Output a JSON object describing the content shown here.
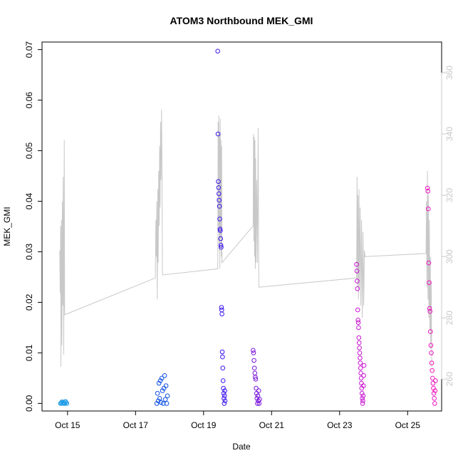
{
  "chart_data": {
    "type": "scatter",
    "title": "ATOM3 Northbound MEK_GMI",
    "xlabel": "Date",
    "ylabel": "MEK_GMI",
    "x_tick_labels": [
      "Oct 15",
      "Oct 17",
      "Oct 19",
      "Oct 21",
      "Oct 23",
      "Oct 25"
    ],
    "x_tick_dates": [
      "2016-10-15",
      "2016-10-17",
      "2016-10-19",
      "2016-10-21",
      "2016-10-23",
      "2016-10-25"
    ],
    "xlim": [
      "2016-10-14T06:00",
      "2016-10-26T00:00"
    ],
    "ylim": [
      -0.0015,
      0.0715
    ],
    "y_ticks": [
      0.0,
      0.01,
      0.02,
      0.03,
      0.04,
      0.05,
      0.06,
      0.07
    ],
    "y_tick_labels": [
      "0.00",
      "0.01",
      "0.02",
      "0.03",
      "0.04",
      "0.05",
      "0.06",
      "0.07"
    ],
    "right_axis": {
      "color": "#c8c8c8",
      "ylim": [
        249.6,
        370.0
      ],
      "ticks": [
        260,
        280,
        300,
        320,
        340,
        360
      ],
      "tick_labels": [
        "260",
        "280",
        "300",
        "320",
        "340",
        "360"
      ]
    },
    "grid": false,
    "legend": "none",
    "marker": "open-circle",
    "point_clusters": [
      {
        "date": "2016-10-14T19:00",
        "color": "#1e9be6",
        "points": [
          [
            0,
            0.0
          ],
          [
            0.5,
            0.0001
          ],
          [
            1,
            0.0003
          ],
          [
            1.5,
            0.0
          ],
          [
            2,
            0.0002
          ],
          [
            2.5,
            0.0001
          ],
          [
            3,
            0.0
          ],
          [
            3.5,
            0.0004
          ],
          [
            4,
            0.0002
          ],
          [
            4.5,
            0.0
          ]
        ]
      },
      {
        "date": "2016-10-17T15:00",
        "color": "#0f50e6",
        "points": [
          [
            0,
            0.0
          ],
          [
            0.5,
            0.002
          ],
          [
            1,
            0.0005
          ],
          [
            1.5,
            0.004
          ],
          [
            2,
            0.001
          ],
          [
            2.5,
            0.0045
          ],
          [
            3,
            0.0002
          ],
          [
            3.5,
            0.005
          ],
          [
            4,
            0.0025
          ],
          [
            4.5,
            0.0
          ],
          [
            5,
            0.003
          ],
          [
            5.5,
            0.0055
          ],
          [
            6,
            0.0008
          ],
          [
            6.5,
            0.0035
          ],
          [
            7,
            0.0
          ],
          [
            7.5,
            0.0015
          ]
        ]
      },
      {
        "date": "2016-10-19T10:00",
        "color": "#3c14f0",
        "points": [
          [
            0,
            0.0697
          ],
          [
            0.2,
            0.0533
          ],
          [
            0.4,
            0.0439
          ],
          [
            0.6,
            0.0427
          ],
          [
            0.8,
            0.0415
          ],
          [
            1,
            0.0402
          ],
          [
            1.2,
            0.039
          ],
          [
            1.4,
            0.0365
          ],
          [
            1.6,
            0.0345
          ],
          [
            1.8,
            0.0342
          ],
          [
            2,
            0.0326
          ],
          [
            2.2,
            0.0313
          ],
          [
            2.4,
            0.0309
          ],
          [
            2.6,
            0.019
          ],
          [
            2.8,
            0.0185
          ],
          [
            3,
            0.0177
          ],
          [
            3.2,
            0.0102
          ],
          [
            3.4,
            0.0092
          ],
          [
            3.6,
            0.007
          ],
          [
            3.8,
            0.0045
          ],
          [
            4,
            0.003
          ],
          [
            4.2,
            0.002
          ],
          [
            4.4,
            0.001
          ],
          [
            4.6,
            0.0
          ],
          [
            4.8,
            0.0015
          ],
          [
            5,
            0.0025
          ],
          [
            5.2,
            0.0005
          ]
        ]
      },
      {
        "date": "2016-10-20T11:00",
        "color": "#7814dc",
        "points": [
          [
            0,
            0.0105
          ],
          [
            0.3,
            0.01
          ],
          [
            0.6,
            0.0085
          ],
          [
            0.9,
            0.007
          ],
          [
            1.2,
            0.006
          ],
          [
            1.5,
            0.0052
          ],
          [
            1.8,
            0.0048
          ],
          [
            2.1,
            0.003
          ],
          [
            2.4,
            0.002
          ],
          [
            2.7,
            0.001
          ],
          [
            3,
            0.0
          ],
          [
            3.3,
            0.0015
          ],
          [
            3.6,
            0.0005
          ],
          [
            3.9,
            0.0025
          ],
          [
            4.2,
            0.0
          ],
          [
            4.5,
            0.0008
          ]
        ]
      },
      {
        "date": "2016-10-23T12:00",
        "color": "#c814d2",
        "points": [
          [
            0,
            0.0275
          ],
          [
            0.2,
            0.0262
          ],
          [
            0.4,
            0.0242
          ],
          [
            0.6,
            0.0227
          ],
          [
            0.8,
            0.0185
          ],
          [
            1,
            0.0165
          ],
          [
            1.2,
            0.016
          ],
          [
            1.4,
            0.015
          ],
          [
            1.6,
            0.013
          ],
          [
            1.8,
            0.012
          ],
          [
            2,
            0.011
          ],
          [
            2.2,
            0.01
          ],
          [
            2.4,
            0.009
          ],
          [
            2.6,
            0.008
          ],
          [
            2.8,
            0.007
          ],
          [
            3,
            0.006
          ],
          [
            3.2,
            0.005
          ],
          [
            3.4,
            0.004
          ],
          [
            3.6,
            0.003
          ],
          [
            3.8,
            0.002
          ],
          [
            4,
            0.001
          ],
          [
            4.2,
            0.0
          ],
          [
            4.4,
            0.0005
          ],
          [
            4.6,
            0.0015
          ],
          [
            4.8,
            0.0035
          ],
          [
            5,
            0.0055
          ],
          [
            5.2,
            0.0075
          ]
        ]
      },
      {
        "date": "2016-10-25T14:00",
        "color": "#f014be",
        "points": [
          [
            0,
            0.0426
          ],
          [
            0.3,
            0.042
          ],
          [
            0.6,
            0.0385
          ],
          [
            0.9,
            0.0278
          ],
          [
            1.2,
            0.0239
          ],
          [
            1.5,
            0.0188
          ],
          [
            1.8,
            0.0182
          ],
          [
            2.1,
            0.0142
          ],
          [
            2.4,
            0.0115
          ],
          [
            2.7,
            0.01
          ],
          [
            3,
            0.008
          ],
          [
            3.3,
            0.0065
          ],
          [
            3.6,
            0.005
          ],
          [
            3.9,
            0.004
          ],
          [
            4.2,
            0.003
          ],
          [
            4.5,
            0.002
          ],
          [
            4.8,
            0.001
          ],
          [
            5.1,
            0.0
          ],
          [
            5.4,
            0.0025
          ],
          [
            5.7,
            0.0045
          ]
        ]
      }
    ],
    "line_series": {
      "color": "#c8c8c8",
      "axis": "right",
      "points": [
        [
          "2016-10-14T18:30",
          302
        ],
        [
          "2016-10-14T18:50",
          288
        ],
        [
          "2016-10-14T19:10",
          310
        ],
        [
          "2016-10-14T19:20",
          264
        ],
        [
          "2016-10-14T19:40",
          312
        ],
        [
          "2016-10-14T20:00",
          271
        ],
        [
          "2016-10-14T20:20",
          318
        ],
        [
          "2016-10-14T20:40",
          284
        ],
        [
          "2016-10-14T21:00",
          326
        ],
        [
          "2016-10-14T21:20",
          268
        ],
        [
          "2016-10-14T21:40",
          338
        ],
        [
          "2016-10-14T22:00",
          281
        ],
        [
          "2016-10-17T14:00",
          293
        ],
        [
          "2016-10-17T14:20",
          312
        ],
        [
          "2016-10-17T14:40",
          300
        ],
        [
          "2016-10-17T15:00",
          318
        ],
        [
          "2016-10-17T15:20",
          286
        ],
        [
          "2016-10-17T15:40",
          322
        ],
        [
          "2016-10-17T16:00",
          298
        ],
        [
          "2016-10-17T16:20",
          328
        ],
        [
          "2016-10-17T16:40",
          310
        ],
        [
          "2016-10-17T17:00",
          336
        ],
        [
          "2016-10-17T17:20",
          316
        ],
        [
          "2016-10-17T17:40",
          344
        ],
        [
          "2016-10-17T18:00",
          325
        ],
        [
          "2016-10-17T18:20",
          348
        ],
        [
          "2016-10-17T18:40",
          330
        ],
        [
          "2016-10-17T19:00",
          294
        ],
        [
          "2016-10-19T10:00",
          296
        ],
        [
          "2016-10-19T10:15",
          344
        ],
        [
          "2016-10-19T10:30",
          310
        ],
        [
          "2016-10-19T10:45",
          346
        ],
        [
          "2016-10-19T11:00",
          302
        ],
        [
          "2016-10-19T11:15",
          340
        ],
        [
          "2016-10-19T11:30",
          296
        ],
        [
          "2016-10-19T11:45",
          345
        ],
        [
          "2016-10-19T12:00",
          306
        ],
        [
          "2016-10-19T12:15",
          338
        ],
        [
          "2016-10-19T12:30",
          300
        ],
        [
          "2016-10-19T12:45",
          336
        ],
        [
          "2016-10-19T13:00",
          298
        ],
        [
          "2016-10-20T11:00",
          310
        ],
        [
          "2016-10-20T11:15",
          340
        ],
        [
          "2016-10-20T11:30",
          305
        ],
        [
          "2016-10-20T11:45",
          339
        ],
        [
          "2016-10-20T12:00",
          300
        ],
        [
          "2016-10-20T12:15",
          338
        ],
        [
          "2016-10-20T12:30",
          296
        ],
        [
          "2016-10-20T12:45",
          332
        ],
        [
          "2016-10-20T13:00",
          298
        ],
        [
          "2016-10-20T13:30",
          325
        ],
        [
          "2016-10-20T14:00",
          298
        ],
        [
          "2016-10-20T14:30",
          342
        ],
        [
          "2016-10-20T15:00",
          290
        ],
        [
          "2016-10-23T12:00",
          293
        ],
        [
          "2016-10-23T12:20",
          326
        ],
        [
          "2016-10-23T12:40",
          290
        ],
        [
          "2016-10-23T13:00",
          320
        ],
        [
          "2016-10-23T13:20",
          286
        ],
        [
          "2016-10-23T13:40",
          322
        ],
        [
          "2016-10-23T14:00",
          290
        ],
        [
          "2016-10-23T14:30",
          316
        ],
        [
          "2016-10-23T15:00",
          284
        ],
        [
          "2016-10-23T15:30",
          312
        ],
        [
          "2016-10-23T16:00",
          280
        ],
        [
          "2016-10-23T16:30",
          308
        ],
        [
          "2016-10-23T17:00",
          284
        ],
        [
          "2016-10-23T17:30",
          302
        ],
        [
          "2016-10-23T18:00",
          300
        ],
        [
          "2016-10-25T13:00",
          301
        ],
        [
          "2016-10-25T13:20",
          318
        ],
        [
          "2016-10-25T13:40",
          290
        ],
        [
          "2016-10-25T14:00",
          328
        ],
        [
          "2016-10-25T14:20",
          286
        ],
        [
          "2016-10-25T14:40",
          320
        ],
        [
          "2016-10-25T15:00",
          280
        ],
        [
          "2016-10-25T15:20",
          312
        ],
        [
          "2016-10-25T15:40",
          276
        ],
        [
          "2016-10-25T16:00",
          300
        ],
        [
          "2016-10-25T16:20",
          270
        ],
        [
          "2016-10-25T16:40",
          292
        ],
        [
          "2016-10-25T17:00",
          264
        ]
      ]
    }
  }
}
